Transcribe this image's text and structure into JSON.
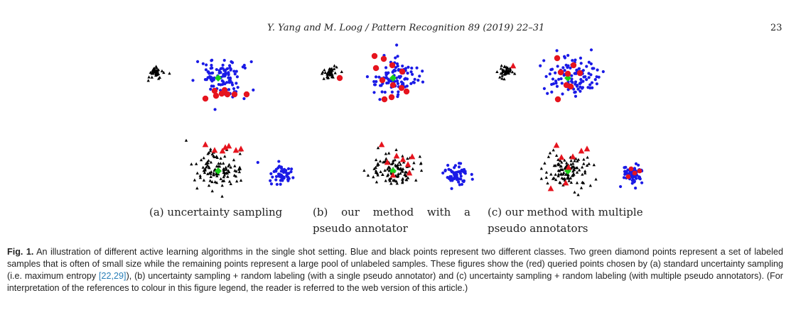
{
  "header": {
    "running_head": "Y. Yang and M. Loog / Pattern Recognition 89 (2019) 22–31",
    "page_number": "23"
  },
  "subfigures": [
    {
      "label": "(a) uncertainty sampling"
    },
    {
      "label_words": [
        "(b)",
        "our",
        "method",
        "with",
        "a"
      ],
      "label_line2": "pseudo annotator"
    },
    {
      "label": "(c) our method with multiple",
      "label_line2": "pseudo annotators"
    }
  ],
  "caption": {
    "label": "Fig. 1.",
    "text_before_ref": "An illustration of different active learning algorithms in the single shot setting. Blue and black points represent two different classes. Two green diamond points represent a set of labeled samples that is often of small size while the remaining points represent a large pool of unlabeled samples. These figures show the (red) queried points chosen by (a) standard uncertainty sampling (i.e. maximum entropy ",
    "ref": "[22,29]",
    "text_after_ref": "), (b) uncertainty sampling + random labeling (with a single pseudo annotator) and (c) uncertainty sampling + random labeling (with multiple pseudo annotators). (For interpretation of the references to colour in this figure legend, the reader is referred to the web version of this article.)"
  },
  "colors": {
    "class_blue": "#1a1ae6",
    "class_black": "#000000",
    "labeled_green": "#19d219",
    "queried_red": "#e6141e"
  },
  "icons": [
    "blue-dot",
    "black-triangle",
    "green-diamond",
    "red-dot",
    "red-triangle"
  ]
}
